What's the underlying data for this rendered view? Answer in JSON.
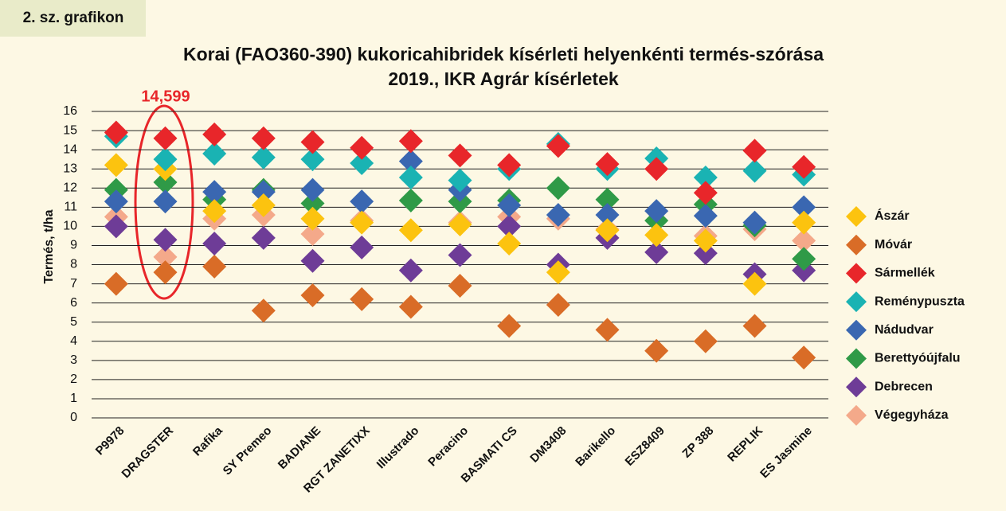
{
  "header": {
    "label": "2. sz. grafikon"
  },
  "chart_data": {
    "type": "scatter",
    "title": "Korai (FAO360-390) kukoricahibridek kísérleti helyenkénti termés-szórása",
    "subtitle": "2019., IKR Agrár kísérletek",
    "annotation": "14,599",
    "y_label": "Termés, t/ha",
    "categories": [
      "P9978",
      "DRAGSTER",
      "Rafika",
      "SY Premeo",
      "BADIANE",
      "RGT ZANETIXX",
      "Illustrado",
      "Peracino",
      "BASMATI CS",
      "DM3408",
      "Barikello",
      "ESZ8409",
      "ZP 388",
      "REPLIK",
      "ES Jasmine"
    ],
    "ylim": [
      0,
      16
    ],
    "yticks": [
      0,
      1,
      2,
      3,
      4,
      5,
      6,
      7,
      8,
      9,
      10,
      11,
      12,
      13,
      14,
      15,
      16
    ],
    "grid": true,
    "legend": "right",
    "series": [
      {
        "name": "Végegyháza",
        "color": "#f4a98a",
        "values": [
          10.5,
          8.4,
          10.4,
          10.6,
          9.6,
          10.3,
          null,
          10.2,
          10.5,
          10.4,
          9.85,
          null,
          9.5,
          9.85,
          9.25
        ]
      },
      {
        "name": "Móvár",
        "color": "#d96c27",
        "values": [
          7.0,
          7.6,
          7.9,
          5.6,
          6.4,
          6.2,
          5.8,
          6.9,
          4.8,
          5.9,
          4.6,
          3.5,
          4.0,
          4.8,
          3.15
        ]
      },
      {
        "name": "Debrecen",
        "color": "#6e3c97",
        "values": [
          10.0,
          9.3,
          9.1,
          9.4,
          8.2,
          8.9,
          7.7,
          8.5,
          10.0,
          8.0,
          9.4,
          8.65,
          8.6,
          7.5,
          7.7
        ]
      },
      {
        "name": "Berettyóújfalu",
        "color": "#2f9a47",
        "values": [
          11.9,
          12.3,
          11.4,
          11.9,
          11.2,
          null,
          11.35,
          11.3,
          11.35,
          12.0,
          11.4,
          10.3,
          11.15,
          10.05,
          8.3
        ]
      },
      {
        "name": "Nádudvar",
        "color": "#3a67b1",
        "values": [
          11.3,
          11.3,
          11.8,
          11.8,
          11.9,
          11.3,
          13.4,
          11.9,
          11.1,
          10.6,
          10.6,
          10.8,
          10.55,
          10.2,
          11.0
        ]
      },
      {
        "name": "Ászár",
        "color": "#fcc30f",
        "values": [
          13.2,
          13.0,
          10.8,
          11.1,
          10.4,
          10.2,
          9.8,
          10.1,
          9.1,
          7.6,
          9.8,
          9.55,
          9.25,
          7.0,
          10.2
        ]
      },
      {
        "name": "Reménypuszta",
        "color": "#1ab3b3",
        "values": [
          14.7,
          13.5,
          13.8,
          13.6,
          13.5,
          13.3,
          12.55,
          12.4,
          13.0,
          14.3,
          13.0,
          13.55,
          12.55,
          12.9,
          12.7
        ]
      },
      {
        "name": "Sármellék",
        "color": "#e8262a",
        "values": [
          14.9,
          14.6,
          14.8,
          14.6,
          14.4,
          14.1,
          14.45,
          13.7,
          13.2,
          14.2,
          13.25,
          13.0,
          11.75,
          13.95,
          13.1
        ]
      }
    ],
    "legend_order": [
      "Ászár",
      "Móvár",
      "Sármellék",
      "Reménypuszta",
      "Nádudvar",
      "Berettyóújfalu",
      "Debrecen",
      "Végegyháza"
    ]
  }
}
